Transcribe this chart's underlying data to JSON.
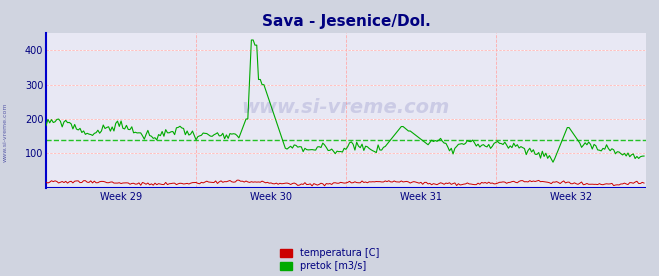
{
  "title": "Sava - Jesenice/Dol.",
  "title_color": "#000080",
  "title_fontsize": 11,
  "bg_color": "#d0d4e0",
  "plot_bg_color": "#e8e8f4",
  "grid_color_h": "#ffffff",
  "grid_color_v": "#ffaaaa",
  "ylim": [
    0,
    450
  ],
  "yticks": [
    100,
    200,
    300,
    400
  ],
  "tick_label_color": "#000080",
  "week_labels": [
    "Week 29",
    "Week 30",
    "Week 31",
    "Week 32"
  ],
  "legend_labels": [
    "temperatura [C]",
    "pretok [m3/s]"
  ],
  "legend_colors": [
    "#cc0000",
    "#00aa00"
  ],
  "avg_line_value": 138,
  "avg_line_color": "#00bb00",
  "watermark": "www.si-vreme.com",
  "watermark_color": "#000080",
  "watermark_alpha": 0.12,
  "sidebar_text": "www.si-vreme.com",
  "sidebar_color": "#000080",
  "flow_color": "#00aa00",
  "temp_color": "#cc0000",
  "xaxis_color": "#0000cc",
  "arrow_color": "#cc0000",
  "yaxis_color": "#0000cc",
  "n_points": 336,
  "n_weeks": 4,
  "points_per_week": 84
}
